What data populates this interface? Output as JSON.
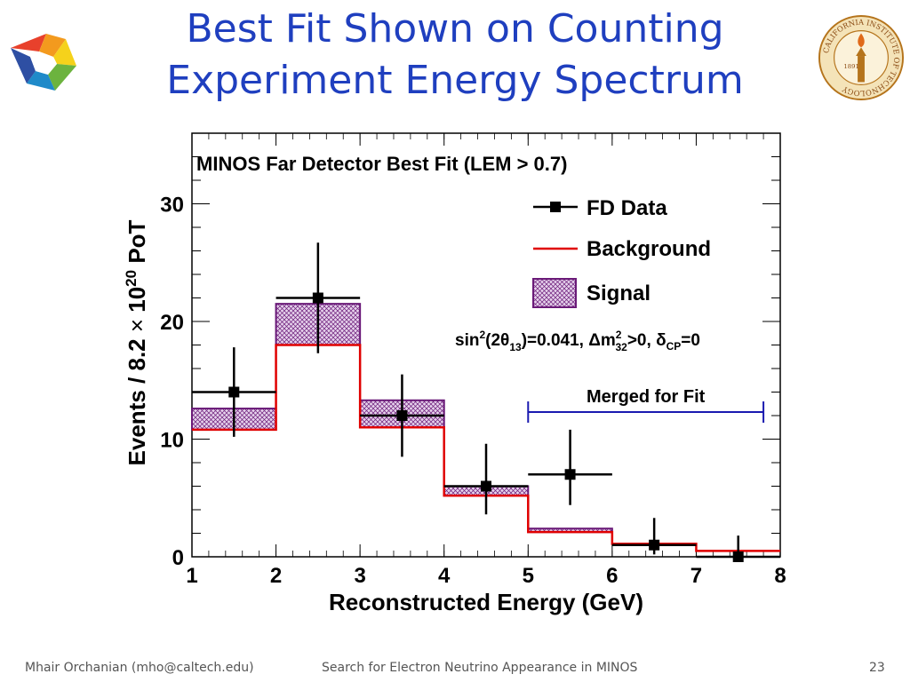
{
  "slide": {
    "title_line1": "Best Fit Shown on Counting",
    "title_line2": "Experiment Energy Spectrum"
  },
  "logos": {
    "left": "colored-swirl-logo",
    "right": "caltech-seal",
    "right_text": "CALIFORNIA INSTITUTE OF TECHNOLOGY",
    "right_year": "1891"
  },
  "footer": {
    "author": "Mhair Orchanian (mho@caltech.edu)",
    "talk": "Search for Electron Neutrino Appearance in MINOS",
    "page": "23"
  },
  "chart_data": {
    "type": "histogram",
    "title": "MINOS Far Detector Best Fit (LEM > 0.7)",
    "xlabel": "Reconstructed Energy (GeV)",
    "ylabel_parts": {
      "a": "Events / 8.2 ",
      "times": "×",
      "b": " 10",
      "exp": "20",
      "c": " PoT"
    },
    "xlim": [
      1,
      8
    ],
    "ylim": [
      0,
      36
    ],
    "xticks": [
      1,
      2,
      3,
      4,
      5,
      6,
      7,
      8
    ],
    "yticks": [
      0,
      10,
      20,
      30
    ],
    "bin_edges": [
      1,
      2,
      3,
      4,
      5,
      6,
      7,
      8
    ],
    "background": [
      10.8,
      18.0,
      11.0,
      5.2,
      2.1,
      1.1,
      0.5
    ],
    "signal": [
      1.8,
      3.5,
      2.3,
      0.8,
      0.3,
      0.0,
      0.0
    ],
    "data": {
      "x": [
        1.5,
        2.5,
        3.5,
        4.5,
        5.5,
        6.5,
        7.5
      ],
      "y": [
        14,
        22,
        12,
        6,
        7,
        1,
        0
      ],
      "err_low": [
        3.8,
        4.7,
        3.5,
        2.4,
        2.6,
        0.8,
        0.0
      ],
      "err_high": [
        3.8,
        4.7,
        3.5,
        3.6,
        3.8,
        2.3,
        1.8
      ]
    },
    "legend": {
      "placement": "top-right",
      "entries": [
        {
          "name": "FD Data",
          "color": "#000000"
        },
        {
          "name": "Background",
          "color": "#e00000"
        },
        {
          "name": "Signal",
          "color": "#6a1a78"
        }
      ]
    },
    "param_text": {
      "sin": "sin",
      "sup2": "2",
      "two": "(2",
      "theta": "θ",
      "sub13": "13",
      "rest1": ")=0.041, ",
      "delta": "Δ",
      "m": "m",
      "m_sup": "2",
      "m_sub": "32",
      "rest2": ">0, ",
      "delta_cp": "δ",
      "cp_sub": "CP",
      "rest3": "=0"
    },
    "annotation": {
      "text": "Merged for Fit",
      "x_from": 5,
      "x_to": 7.8,
      "y": 12.3,
      "color": "#1a1ab0"
    },
    "colors": {
      "background_line": "#e00000",
      "signal_edge": "#6a1a78",
      "signal_fill": "#c9a6d6",
      "data": "#000000"
    }
  }
}
